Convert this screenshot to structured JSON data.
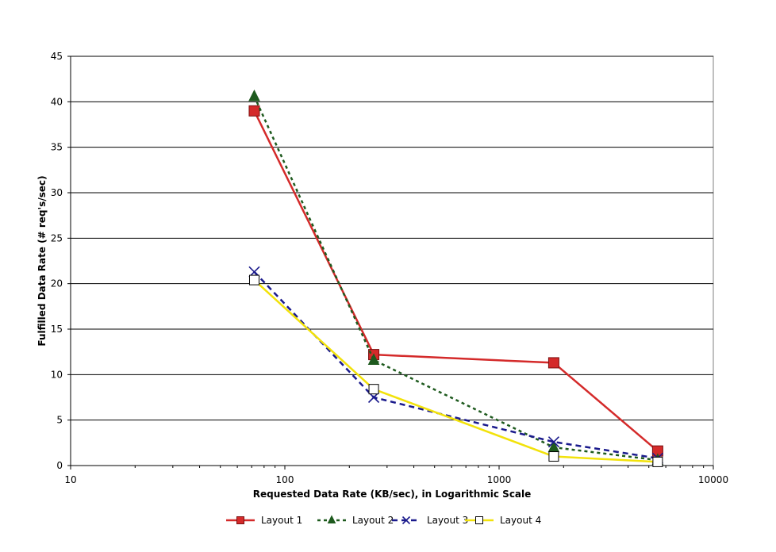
{
  "chart_data": {
    "type": "line",
    "title": "",
    "xlabel": "Requested Data Rate (KB/sec), in Logarithmic Scale",
    "ylabel": "Fulfilled Data Rate (# req's/sec)",
    "x_scale": "log",
    "xlim": [
      10,
      10000
    ],
    "ylim": [
      0,
      45
    ],
    "x_ticks": [
      10,
      100,
      1000,
      10000
    ],
    "x_tick_labels": [
      "10",
      "100",
      "1000",
      "10000"
    ],
    "y_ticks": [
      0,
      5,
      10,
      15,
      20,
      25,
      30,
      35,
      40,
      45
    ],
    "y_tick_labels": [
      "0",
      "5",
      "10",
      "15",
      "20",
      "25",
      "30",
      "35",
      "40",
      "45"
    ],
    "grid": "horizontal major gridlines",
    "legend_position": "bottom",
    "series": [
      {
        "name": "Layout 1",
        "color": "#d42a2a",
        "line_style": "solid",
        "marker": "filled-square",
        "x": [
          72,
          260,
          1800,
          5500
        ],
        "y": [
          39.0,
          12.2,
          11.3,
          1.6
        ]
      },
      {
        "name": "Layout 2",
        "color": "#1e5a1e",
        "line_style": "dotted",
        "marker": "filled-triangle",
        "x": [
          72,
          260,
          1800,
          5500
        ],
        "y": [
          40.6,
          11.6,
          2.0,
          0.6
        ]
      },
      {
        "name": "Layout 3",
        "color": "#1a1a8c",
        "line_style": "dashed",
        "marker": "x",
        "x": [
          72,
          260,
          1800,
          5500
        ],
        "y": [
          21.3,
          7.5,
          2.6,
          0.8
        ]
      },
      {
        "name": "Layout 4",
        "color": "#f2e20a",
        "line_style": "solid",
        "marker": "open-square",
        "x": [
          72,
          260,
          1800,
          5500
        ],
        "y": [
          20.4,
          8.4,
          1.0,
          0.4
        ]
      }
    ]
  }
}
